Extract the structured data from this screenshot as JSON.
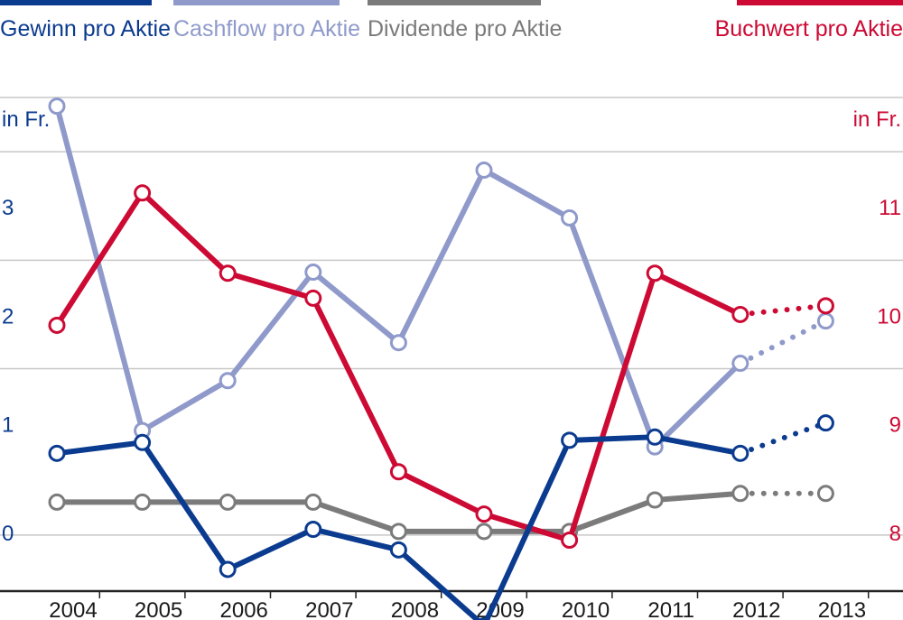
{
  "chart_data": {
    "type": "line",
    "categories": [
      "2004",
      "2005",
      "2006",
      "2007",
      "2008",
      "2009",
      "2010",
      "2011",
      "2012",
      "2013"
    ],
    "left_axis": {
      "label": "in Fr.",
      "ticks": [
        "0",
        "1",
        "2",
        "3"
      ],
      "ylim": [
        -0.55,
        4.0
      ]
    },
    "right_axis": {
      "label": "in Fr.",
      "ticks": [
        "8",
        "9",
        "10",
        "11"
      ],
      "ylim": [
        7.45,
        12.0
      ]
    },
    "grid": true,
    "legend": "top",
    "forecast_from_index": 8,
    "series": [
      {
        "name": "Gewinn pro Aktie",
        "axis": "left",
        "color": "#0b3b8f",
        "values": [
          0.72,
          0.82,
          -0.35,
          0.02,
          -0.17,
          -0.87,
          0.84,
          0.87,
          0.72,
          1.0
        ]
      },
      {
        "name": "Cashflow pro Aktie",
        "axis": "left",
        "color": "#8f9acb",
        "values": [
          3.92,
          0.93,
          1.39,
          2.39,
          1.74,
          3.33,
          2.89,
          0.78,
          1.55,
          1.94
        ]
      },
      {
        "name": "Dividende pro Aktie",
        "axis": "left",
        "color": "#7b7b7b",
        "values": [
          0.27,
          0.27,
          0.27,
          0.27,
          0.0,
          0.0,
          0.0,
          0.29,
          0.35,
          0.35
        ]
      },
      {
        "name": "Buchwert pro Aktie",
        "axis": "right",
        "color": "#cc0a34",
        "values": [
          9.9,
          11.12,
          10.38,
          10.15,
          8.55,
          8.16,
          7.92,
          10.38,
          10.0,
          10.08
        ]
      }
    ]
  }
}
